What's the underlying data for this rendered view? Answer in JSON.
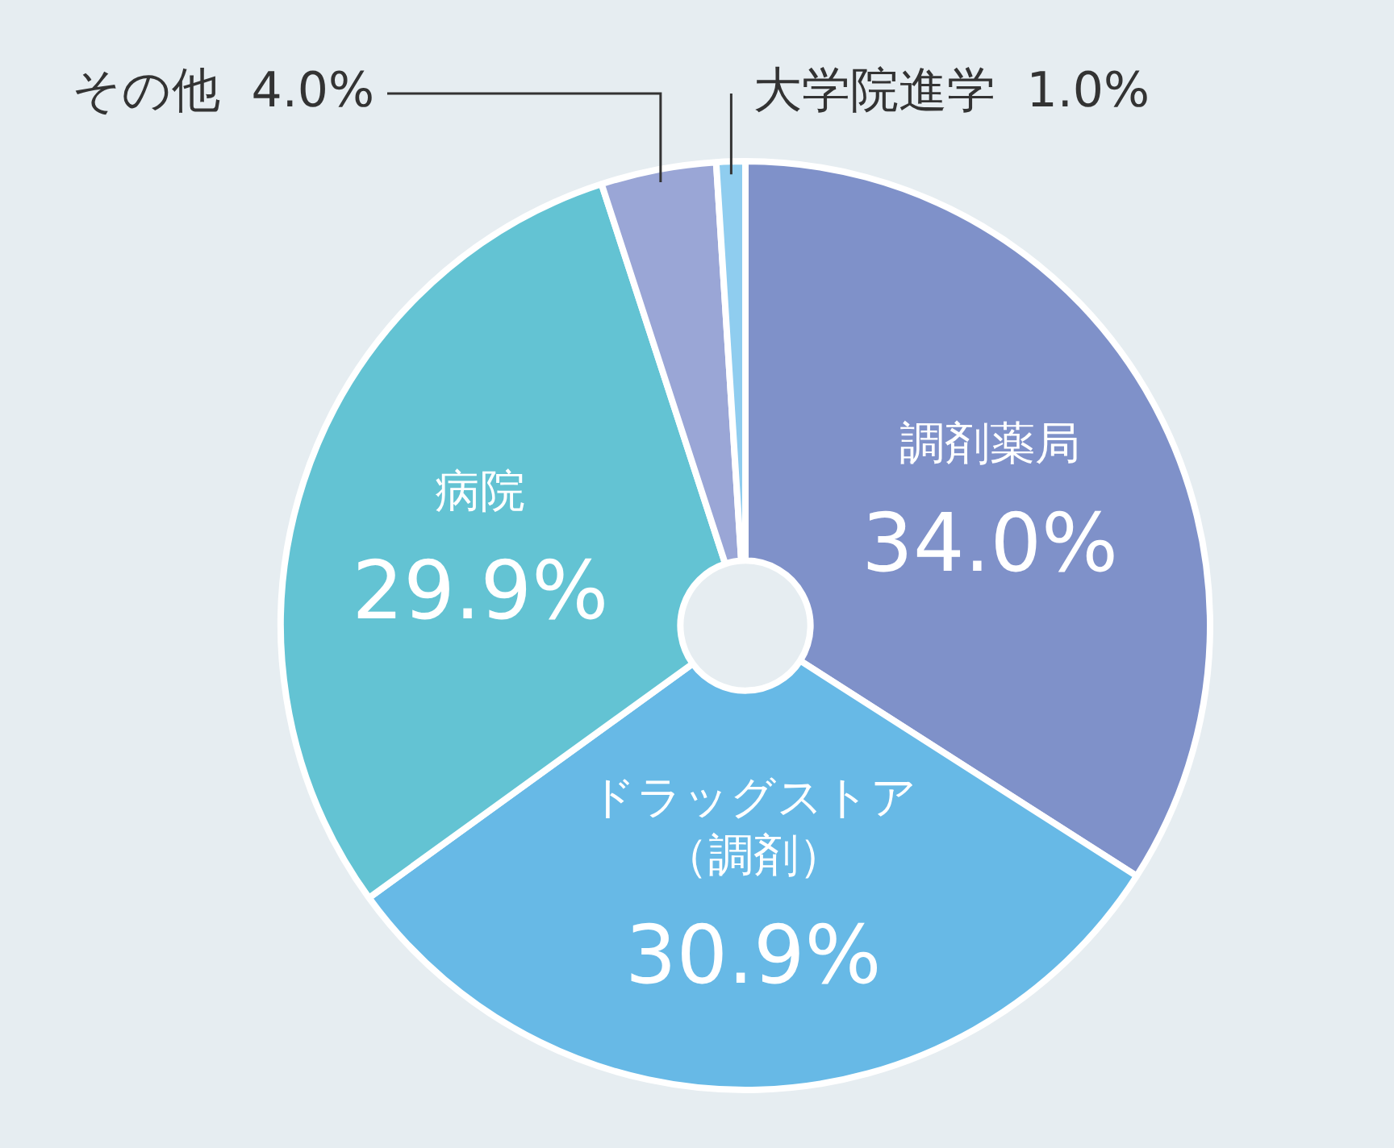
{
  "chart_data": {
    "type": "donut",
    "categories": [
      "調剤薬局",
      "ドラッグストア（調剤）",
      "病院",
      "その他",
      "大学院進学"
    ],
    "values": [
      34.0,
      30.9,
      29.9,
      4.0,
      1.0
    ],
    "value_labels": [
      "34.0%",
      "30.9%",
      "29.9%",
      "4.0%",
      "1.0%"
    ],
    "colors": [
      "#7f91c9",
      "#67b9e6",
      "#63c3d3",
      "#9aa6d6",
      "#8fcdef"
    ],
    "legend": false
  }
}
